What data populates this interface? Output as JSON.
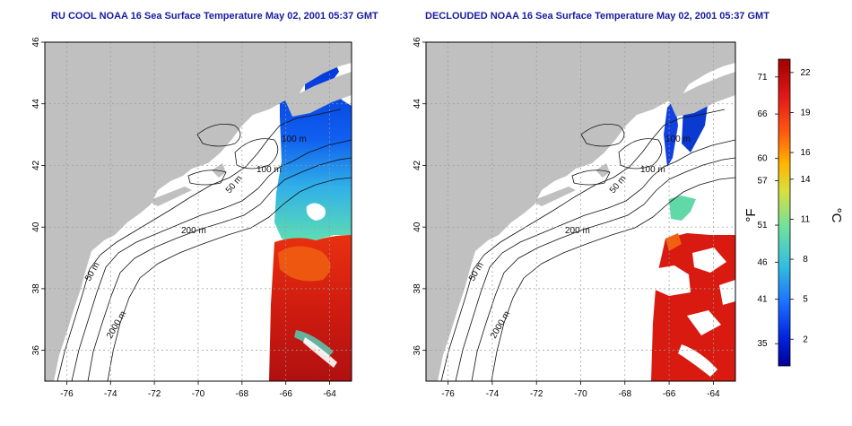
{
  "titles": {
    "left": "RU COOL NOAA 16 Sea Surface Temperature May 02, 2001 05:37 GMT",
    "right": "DECLOUDED NOAA 16 Sea Surface Temperature May 02, 2001 05:37 GMT"
  },
  "map": {
    "lon_range": [
      -77,
      -63
    ],
    "lat_range": [
      35,
      46
    ],
    "lon_ticks": [
      -76,
      -74,
      -72,
      -70,
      -68,
      -66,
      -64
    ],
    "lat_ticks": [
      36,
      38,
      40,
      42,
      44,
      46
    ],
    "gridlines": true,
    "land_color": "#c0c0c0",
    "missing_color": "#ffffff",
    "isobath_labels_left": [
      "100 m",
      "100 m",
      "50 m",
      "200 m",
      "50 m",
      "2000 m"
    ],
    "isobath_labels_right": [
      "100 m",
      "100 m",
      "50 m",
      "200 m",
      "50 m",
      "2000 m"
    ]
  },
  "colorbar": {
    "fahrenheit_label": "°F",
    "celsius_label": "°C",
    "fahrenheit_ticks": [
      "71",
      "66",
      "60",
      "57",
      "51",
      "46",
      "41",
      "35"
    ],
    "celsius_ticks": [
      "22",
      "19",
      "16",
      "14",
      "11",
      "8",
      "5",
      "2"
    ],
    "celsius_range": [
      0,
      23
    ],
    "colors": [
      "#000099",
      "#0022dd",
      "#1a6cff",
      "#33c0e0",
      "#6fe0a0",
      "#d8e040",
      "#ffb400",
      "#ff5a10",
      "#e01818",
      "#a00000"
    ]
  }
}
